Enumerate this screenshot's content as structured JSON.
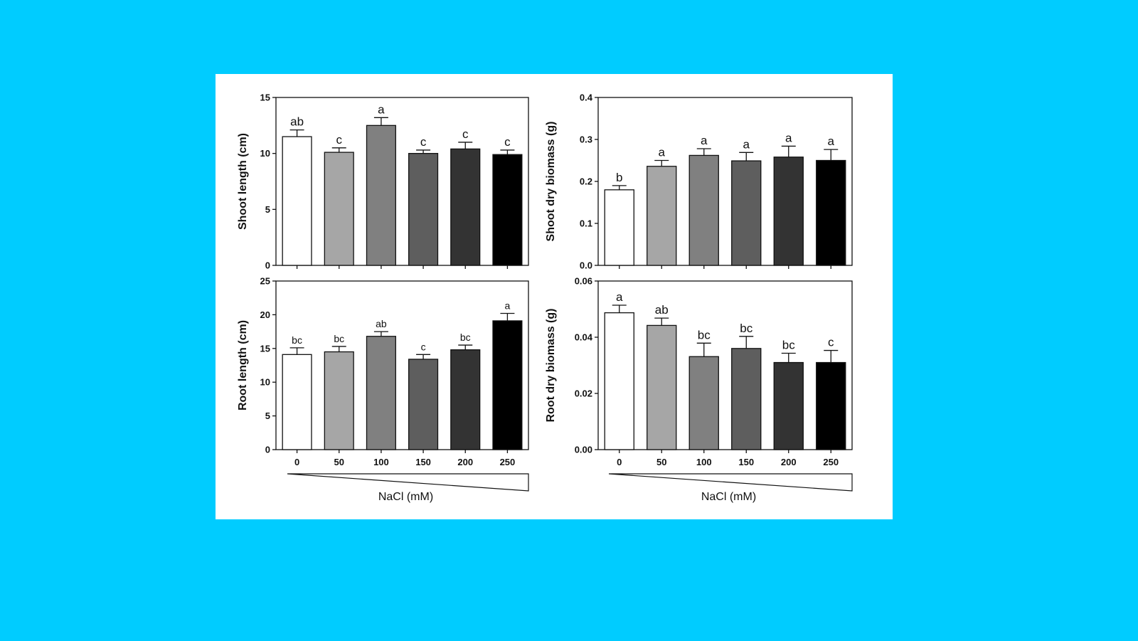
{
  "colors": {
    "background": "#00CCFF",
    "panel": "#FFFFFF",
    "bar_fills": [
      "#FFFFFF",
      "#A6A6A6",
      "#808080",
      "#5E5E5E",
      "#333333",
      "#000000"
    ]
  },
  "chart_data": [
    {
      "type": "bar",
      "categories": [
        "0",
        "50",
        "100",
        "150",
        "200",
        "250"
      ],
      "ylabel": "Shoot length (cm)",
      "xlabel": "",
      "ylim": [
        0,
        15
      ],
      "yticks": [
        0,
        5,
        10,
        15
      ],
      "values": [
        11.5,
        10.1,
        12.5,
        10.0,
        10.4,
        9.9
      ],
      "errors": [
        0.6,
        0.4,
        0.7,
        0.3,
        0.6,
        0.4
      ],
      "letters": [
        "ab",
        "c",
        "a",
        "c",
        "c",
        "c"
      ]
    },
    {
      "type": "bar",
      "categories": [
        "0",
        "50",
        "100",
        "150",
        "200",
        "250"
      ],
      "ylabel": "Shoot dry biomass (g)",
      "xlabel": "",
      "ylim": [
        0,
        0.4
      ],
      "yticks": [
        "0.0",
        "0.1",
        "0.2",
        "0.3",
        "0.4"
      ],
      "values": [
        0.18,
        0.236,
        0.262,
        0.249,
        0.258,
        0.25
      ],
      "errors": [
        0.01,
        0.014,
        0.016,
        0.02,
        0.026,
        0.026
      ],
      "letters": [
        "b",
        "a",
        "a",
        "a",
        "a",
        "a"
      ]
    },
    {
      "type": "bar",
      "categories": [
        "0",
        "50",
        "100",
        "150",
        "200",
        "250"
      ],
      "ylabel": "Root length (cm)",
      "xlabel": "NaCl (mM)",
      "ylim": [
        0,
        25
      ],
      "yticks": [
        0,
        5,
        10,
        15,
        20,
        25
      ],
      "values": [
        14.1,
        14.5,
        16.8,
        13.4,
        14.8,
        19.1
      ],
      "errors": [
        1.0,
        0.8,
        0.7,
        0.7,
        0.7,
        1.1
      ],
      "letters": [
        "bc",
        "bc",
        "ab",
        "c",
        "bc",
        "a"
      ]
    },
    {
      "type": "bar",
      "categories": [
        "0",
        "50",
        "100",
        "150",
        "200",
        "250"
      ],
      "ylabel": "Root dry biomass (g)",
      "xlabel": "NaCl (mM)",
      "ylim": [
        0,
        0.06
      ],
      "yticks": [
        "0.00",
        "0.02",
        "0.04",
        "0.06"
      ],
      "values": [
        0.0487,
        0.0442,
        0.0331,
        0.036,
        0.031,
        0.031
      ],
      "errors": [
        0.0027,
        0.0026,
        0.0048,
        0.0043,
        0.0033,
        0.0043
      ],
      "letters": [
        "a",
        "ab",
        "bc",
        "bc",
        "bc",
        "c"
      ]
    }
  ]
}
